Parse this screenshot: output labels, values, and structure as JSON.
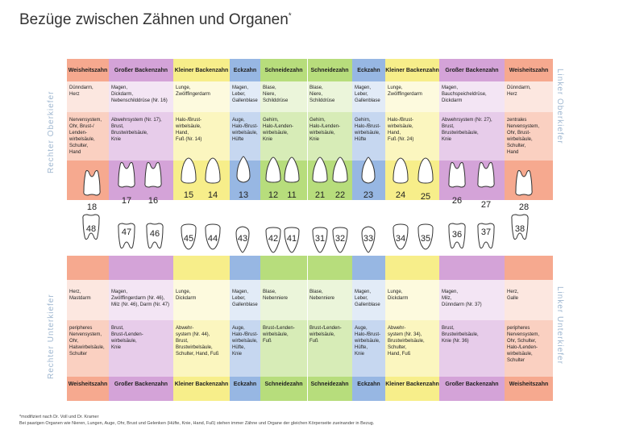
{
  "title": "Bezüge zwischen Zähnen und Organen",
  "title_mark": "*",
  "side_labels": {
    "upper_left": "Rechter Oberkiefer",
    "lower_left": "Rechter Unterkiefer",
    "upper_right": "Linker Oberkiefer",
    "lower_right": "Linker Unterkiefer"
  },
  "colors": {
    "weisheitszahn": "#f6a98f",
    "grosser_backenzahn": "#d4a3d8",
    "kleiner_backenzahn": "#f7ee8a",
    "eckzahn": "#97b7e3",
    "schneidezahn": "#b7dd7c"
  },
  "upper_columns": [
    {
      "type": "weisheitszahn",
      "header": "Weisheitszahn",
      "organs": [
        "Dünndarm,",
        "Herz"
      ],
      "body": [
        "Nervensystem,",
        "Ohr, Brust-/",
        "Lenden-",
        "wirbelsäule,",
        "Schulter,",
        "Hand"
      ]
    },
    {
      "type": "grosser_backenzahn",
      "header": "Großer Backenzahn",
      "organs": [
        "Magen,",
        "Dickdarm,",
        "Nebenschilddrüse (Nr. 16)"
      ],
      "body": [
        "Abwehrsystem (Nr. 17),",
        "Brust,",
        "Brustwirbelsäule,",
        "Knie"
      ]
    },
    {
      "type": "kleiner_backenzahn",
      "header": "Kleiner Backenzahn",
      "organs": [
        "Lunge,",
        "Zwölffingerdarm"
      ],
      "body": [
        "Halo-/Brust-",
        "wirbelsäule,",
        "Hand,",
        "Fuß (Nr. 14)"
      ]
    },
    {
      "type": "eckzahn",
      "header": "Eckzahn",
      "organs": [
        "Magen,",
        "Leber,",
        "Gallenblase"
      ],
      "body": [
        "Auge,",
        "Halo-/Brust-",
        "wirbelsäule,",
        "Hüfte"
      ]
    },
    {
      "type": "schneidezahn",
      "header": "Schneidezahn",
      "organs": [
        "Blase,",
        "Niere,",
        "Schilddrüse"
      ],
      "body": [
        "Gehirn,",
        "Halo-/Lenden-",
        "wirbelsäule,",
        "Knie"
      ]
    },
    {
      "type": "schneidezahn",
      "header": "Schneidezahn",
      "organs": [
        "Blase,",
        "Niere,",
        "Schilddrüse"
      ],
      "body": [
        "Gehirn,",
        "Halo-/Lenden-",
        "wirbelsäule,",
        "Knie"
      ]
    },
    {
      "type": "eckzahn",
      "header": "Eckzahn",
      "organs": [
        "Magen,",
        "Leber,",
        "Gallenblase"
      ],
      "body": [
        "Gehirn,",
        "Halo-/Brust-",
        "wirbelsäule,",
        "Hüfte"
      ]
    },
    {
      "type": "kleiner_backenzahn",
      "header": "Kleiner Backenzahn",
      "organs": [
        "Lunge,",
        "Zwölffingerdarm"
      ],
      "body": [
        "Halo-/Brust-",
        "wirbelsäule,",
        "Hand,",
        "Fuß (Nr. 24)"
      ]
    },
    {
      "type": "grosser_backenzahn",
      "header": "Großer Backenzahn",
      "organs": [
        "Magen,",
        "Bauchspeicheldrüse,",
        "Dickdarm"
      ],
      "body": [
        "Abwehrsystem (Nr. 27),",
        "Brust,",
        "Brustwirbelsäule,",
        "Knie"
      ]
    },
    {
      "type": "weisheitszahn",
      "header": "Weisheitszahn",
      "organs": [
        "Dünndarm,",
        "Herz"
      ],
      "body": [
        "zentrales",
        "Nervensystem,",
        "Ohr, Brust-",
        "wirbelsäule,",
        "Schulter,",
        "Hand"
      ]
    }
  ],
  "lower_columns": [
    {
      "type": "weisheitszahn",
      "header": "Weisheitszahn",
      "organs": [
        "Herz,",
        "Mastdarm"
      ],
      "body": [
        "peripheres",
        "Nervensystem,",
        "Ohr,",
        "Halswirbelsäule,",
        "Schulter"
      ]
    },
    {
      "type": "grosser_backenzahn",
      "header": "Großer Backenzahn",
      "organs": [
        "Magen,",
        "Zwölffingerdarm (Nr. 46),",
        "Milz (Nr. 46), Darm (Nr. 47)"
      ],
      "body": [
        "Brust,",
        "Brust-/Lenden-",
        "wirbelsäule,",
        "Knie"
      ]
    },
    {
      "type": "kleiner_backenzahn",
      "header": "Kleiner Backenzahn",
      "organs": [
        "Lunge,",
        "Dickdarm"
      ],
      "body": [
        "Abwehr-",
        "system (Nr. 44),",
        "Brust,",
        "Brustwirbelsäule,",
        "Schulter, Hand, Fuß"
      ]
    },
    {
      "type": "eckzahn",
      "header": "Eckzahn",
      "organs": [
        "Magen,",
        "Leber,",
        "Gallenblase"
      ],
      "body": [
        "Auge,",
        "Halo-/Brust-",
        "wirbelsäule,",
        "Hüfte,",
        "Knie"
      ]
    },
    {
      "type": "schneidezahn",
      "header": "Schneidezahn",
      "organs": [
        "Blase,",
        "Nebenniere"
      ],
      "body": [
        "Brust-/Lenden-",
        "wirbelsäule,",
        "Fuß"
      ]
    },
    {
      "type": "schneidezahn",
      "header": "Schneidezahn",
      "organs": [
        "Blase,",
        "Nebenniere"
      ],
      "body": [
        "Brust-/Lenden-",
        "wirbelsäule,",
        "Fuß"
      ]
    },
    {
      "type": "eckzahn",
      "header": "Eckzahn",
      "organs": [
        "Magen,",
        "Leber,",
        "Gallenblase"
      ],
      "body": [
        "Auge,",
        "Halo-/Brust-",
        "wirbelsäule,",
        "Hüfte,",
        "Knie"
      ]
    },
    {
      "type": "kleiner_backenzahn",
      "header": "Kleiner Backenzahn",
      "organs": [
        "Lunge,",
        "Dickdarm"
      ],
      "body": [
        "Abwehr-",
        "system (Nr. 34),",
        "Brustwirbelsäule,",
        "Schulter,",
        "Hand, Fuß"
      ]
    },
    {
      "type": "grosser_backenzahn",
      "header": "Großer Backenzahn",
      "organs": [
        "Magen,",
        "Milz,",
        "Dünndarm (Nr. 37)"
      ],
      "body": [
        "Brust,",
        "Brustwirbelsäule,",
        "Knie (Nr. 36)"
      ]
    },
    {
      "type": "weisheitszahn",
      "header": "Weisheitszahn",
      "organs": [
        "Herz,",
        "Galle"
      ],
      "body": [
        "peripheres",
        "Nervensystem,",
        "Ohr, Schulter,",
        "Halo-/Lenden-",
        "wirbelsäule,",
        "Schulter"
      ]
    }
  ],
  "upper_teeth": [
    {
      "num": "18",
      "kind": "molar"
    },
    {
      "num": "17",
      "kind": "molar"
    },
    {
      "num": "16",
      "kind": "molar"
    },
    {
      "num": "15",
      "kind": "premolar"
    },
    {
      "num": "14",
      "kind": "premolar"
    },
    {
      "num": "13",
      "kind": "canine"
    },
    {
      "num": "12",
      "kind": "incisor"
    },
    {
      "num": "11",
      "kind": "incisor"
    },
    {
      "num": "21",
      "kind": "incisor"
    },
    {
      "num": "22",
      "kind": "incisor"
    },
    {
      "num": "23",
      "kind": "canine"
    },
    {
      "num": "24",
      "kind": "premolar"
    },
    {
      "num": "25",
      "kind": "premolar"
    },
    {
      "num": "26",
      "kind": "molar"
    },
    {
      "num": "27",
      "kind": "molar"
    },
    {
      "num": "28",
      "kind": "molar"
    }
  ],
  "lower_teeth": [
    {
      "num": "48",
      "kind": "molar"
    },
    {
      "num": "47",
      "kind": "molar"
    },
    {
      "num": "46",
      "kind": "molar"
    },
    {
      "num": "45",
      "kind": "premolar"
    },
    {
      "num": "44",
      "kind": "premolar"
    },
    {
      "num": "43",
      "kind": "canine"
    },
    {
      "num": "42",
      "kind": "incisor"
    },
    {
      "num": "41",
      "kind": "incisor"
    },
    {
      "num": "31",
      "kind": "incisor"
    },
    {
      "num": "32",
      "kind": "incisor"
    },
    {
      "num": "33",
      "kind": "canine"
    },
    {
      "num": "34",
      "kind": "premolar"
    },
    {
      "num": "35",
      "kind": "premolar"
    },
    {
      "num": "36",
      "kind": "molar"
    },
    {
      "num": "37",
      "kind": "molar"
    },
    {
      "num": "38",
      "kind": "molar"
    }
  ],
  "footnote": [
    "*modifiziert nach Dr. Voll und Dr. Kramer",
    "Bei paarigen Organen wie Nieren, Lungen, Auge, Ohr, Brust und Gelenken (Hüfte, Knie, Hand, Fuß) stehen immer Zähne und Organe der gleichen Körperseite zueinander in Bezug."
  ]
}
